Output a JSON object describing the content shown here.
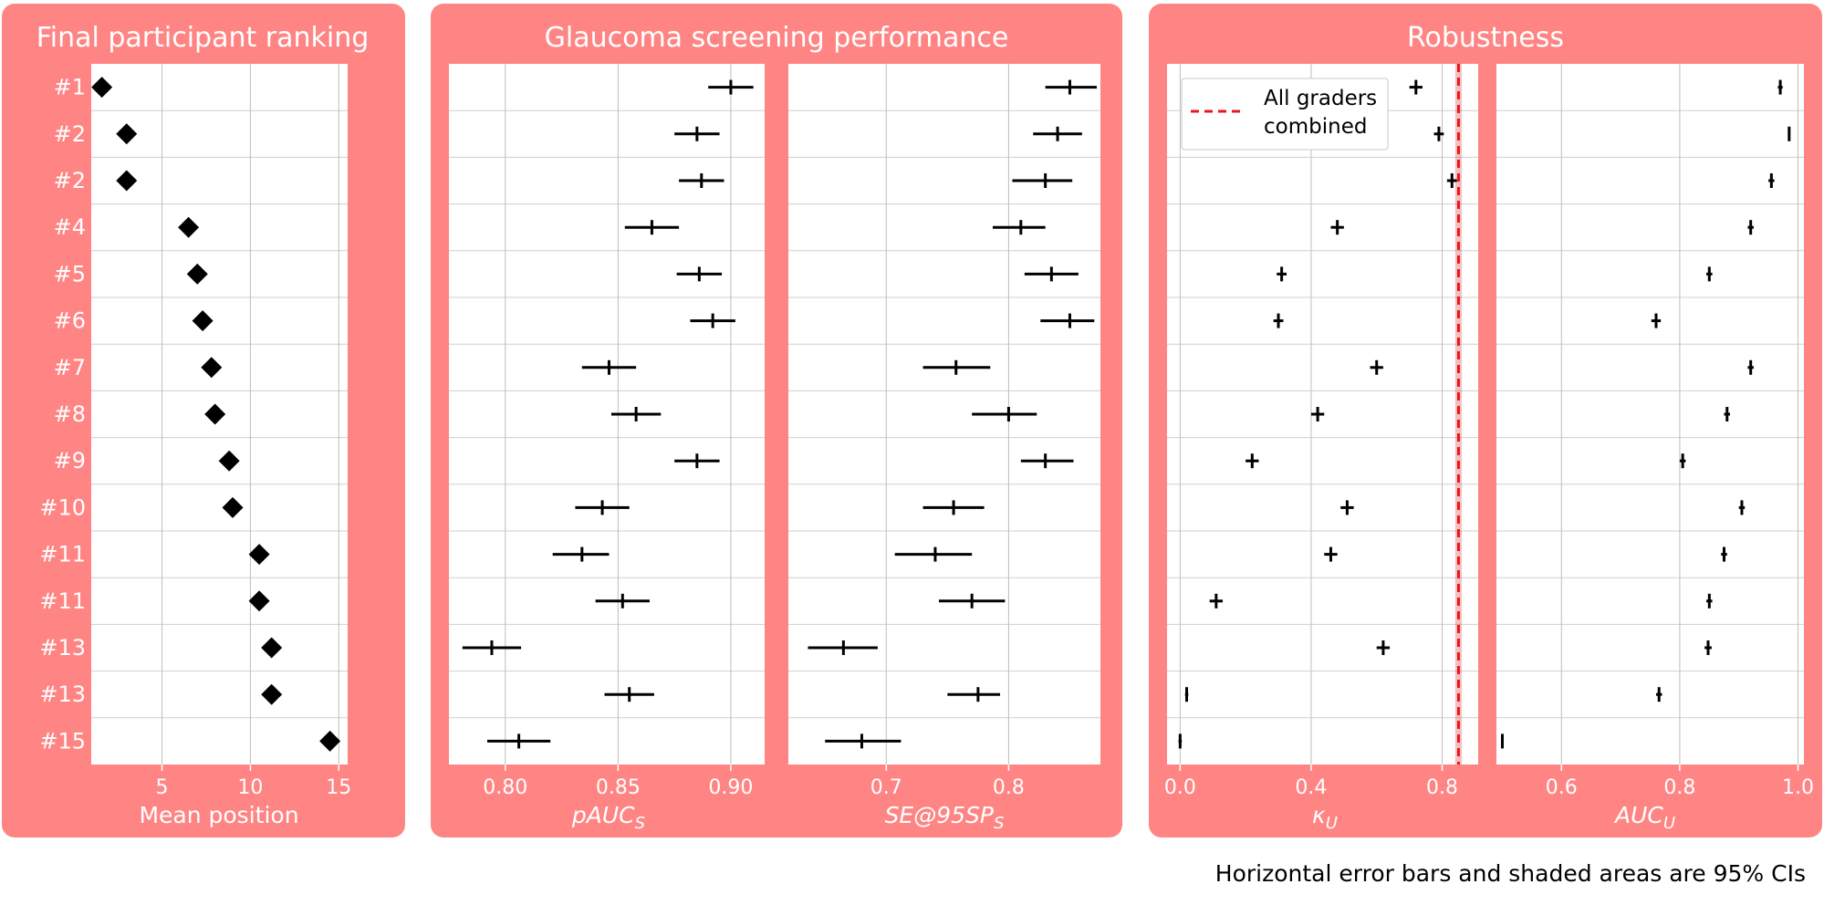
{
  "theme": {
    "panel_color": "#ff8585",
    "plot_bg": "#ffffff",
    "mark_color": "#000000",
    "reference_color": "#e31a1c"
  },
  "footnote": "Horizontal error bars and shaded areas are 95% CIs",
  "chart_data": [
    {
      "title": "Final participant ranking",
      "rank_labels": [
        "#1",
        "#2",
        "#2",
        "#4",
        "#5",
        "#6",
        "#7",
        "#8",
        "#9",
        "#10",
        "#11",
        "#11",
        "#13",
        "#13",
        "#15"
      ],
      "subplots": [
        {
          "type": "scatter",
          "marker": "diamond",
          "xlabel": "Mean position",
          "xlim": [
            1.0,
            15.5
          ],
          "xticks": [
            5,
            10,
            15
          ],
          "tick_labels": [
            "5",
            "10",
            "15"
          ],
          "values": [
            1.6,
            3.0,
            3.0,
            6.5,
            7.0,
            7.3,
            7.8,
            8.0,
            8.8,
            9.0,
            10.5,
            10.5,
            11.2,
            11.2,
            14.5
          ]
        }
      ]
    },
    {
      "title": "Glaucoma screening performance",
      "subplots": [
        {
          "type": "errorbar",
          "xlabel_main": "pAUC",
          "xlabel_sub": "S",
          "xlim": [
            0.775,
            0.915
          ],
          "xticks": [
            0.8,
            0.85,
            0.9
          ],
          "tick_labels": [
            "0.80",
            "0.85",
            "0.90"
          ],
          "values": [
            0.9,
            0.885,
            0.887,
            0.865,
            0.886,
            0.892,
            0.846,
            0.858,
            0.885,
            0.843,
            0.834,
            0.852,
            0.794,
            0.855,
            0.806
          ],
          "ci_low": [
            0.89,
            0.875,
            0.877,
            0.853,
            0.876,
            0.882,
            0.834,
            0.847,
            0.875,
            0.831,
            0.821,
            0.84,
            0.781,
            0.844,
            0.792
          ],
          "ci_high": [
            0.91,
            0.895,
            0.897,
            0.877,
            0.896,
            0.902,
            0.858,
            0.869,
            0.895,
            0.855,
            0.846,
            0.864,
            0.807,
            0.866,
            0.82
          ]
        },
        {
          "type": "errorbar",
          "xlabel_main": "SE@95SP",
          "xlabel_sub": "S",
          "xlim": [
            0.62,
            0.875
          ],
          "xticks": [
            0.7,
            0.8
          ],
          "tick_labels": [
            "0.7",
            "0.8"
          ],
          "values": [
            0.85,
            0.84,
            0.83,
            0.81,
            0.835,
            0.85,
            0.757,
            0.8,
            0.83,
            0.755,
            0.74,
            0.77,
            0.665,
            0.775,
            0.68
          ],
          "ci_low": [
            0.83,
            0.82,
            0.803,
            0.787,
            0.813,
            0.826,
            0.73,
            0.77,
            0.81,
            0.73,
            0.707,
            0.743,
            0.636,
            0.75,
            0.65
          ],
          "ci_high": [
            0.872,
            0.86,
            0.852,
            0.83,
            0.857,
            0.87,
            0.785,
            0.823,
            0.853,
            0.78,
            0.77,
            0.797,
            0.693,
            0.793,
            0.712
          ]
        }
      ]
    },
    {
      "title": "Robustness",
      "subplots": [
        {
          "type": "errorbar",
          "xlabel_main": "κ",
          "xlabel_sub": "U",
          "xlim": [
            -0.04,
            0.91
          ],
          "xticks": [
            0.0,
            0.4,
            0.8
          ],
          "tick_labels": [
            "0.0",
            "0.4",
            "0.8"
          ],
          "values": [
            0.72,
            0.79,
            0.83,
            0.48,
            0.31,
            0.3,
            0.6,
            0.42,
            0.22,
            0.51,
            0.46,
            0.11,
            0.62,
            0.02,
            0.0
          ],
          "ci_low": [
            0.7,
            0.775,
            0.815,
            0.46,
            0.295,
            0.285,
            0.58,
            0.4,
            0.2,
            0.49,
            0.44,
            0.09,
            0.6,
            0.015,
            -0.005
          ],
          "ci_high": [
            0.74,
            0.805,
            0.845,
            0.5,
            0.325,
            0.315,
            0.62,
            0.44,
            0.24,
            0.53,
            0.48,
            0.13,
            0.64,
            0.025,
            0.005
          ],
          "reference": {
            "label": "All graders combined",
            "value": 0.85,
            "ci": [
              0.84,
              0.86
            ]
          },
          "legend": {
            "placement": "top-left",
            "line1": "All graders",
            "line2": "combined"
          }
        },
        {
          "type": "errorbar",
          "xlabel_main": "AUC",
          "xlabel_sub": "U",
          "xlim": [
            0.49,
            1.01
          ],
          "xticks": [
            0.6,
            0.8,
            1.0
          ],
          "tick_labels": [
            "0.6",
            "0.8",
            "1.0"
          ],
          "values": [
            0.97,
            0.985,
            0.955,
            0.92,
            0.85,
            0.76,
            0.92,
            0.88,
            0.805,
            0.905,
            0.875,
            0.85,
            0.848,
            0.765,
            0.5
          ],
          "ci_low": [
            0.966,
            0.983,
            0.95,
            0.915,
            0.845,
            0.752,
            0.915,
            0.875,
            0.8,
            0.9,
            0.87,
            0.845,
            0.842,
            0.76,
            0.498
          ],
          "ci_high": [
            0.974,
            0.987,
            0.96,
            0.925,
            0.855,
            0.768,
            0.925,
            0.885,
            0.81,
            0.91,
            0.88,
            0.855,
            0.854,
            0.77,
            0.502
          ]
        }
      ]
    }
  ]
}
